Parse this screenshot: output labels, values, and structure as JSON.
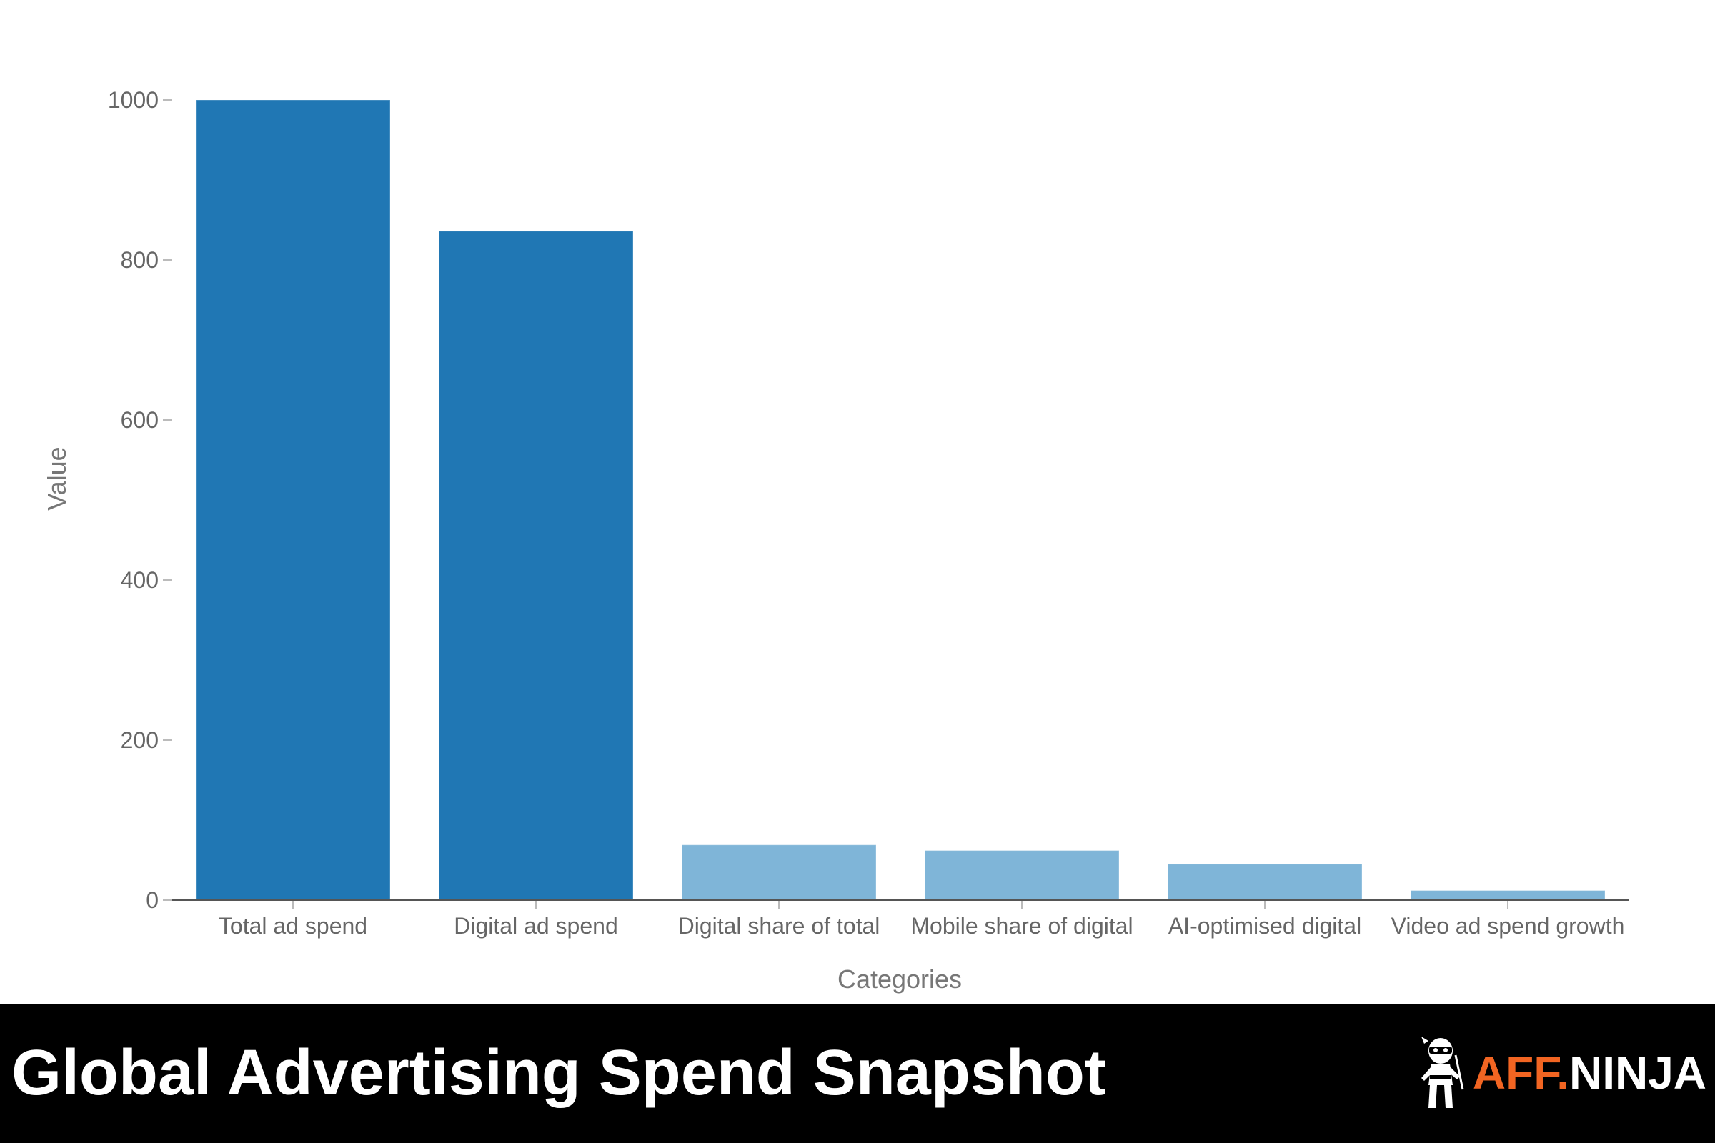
{
  "chart_data": {
    "type": "bar",
    "title": "Global Advertising Spend Snapshot",
    "xlabel": "Categories",
    "ylabel": "Value",
    "categories": [
      "Total ad spend",
      "Digital ad spend",
      "Digital share of total",
      "Mobile share of digital",
      "AI-optimised digital",
      "Video ad spend growth"
    ],
    "values": [
      1000,
      836,
      69,
      62,
      45,
      12
    ],
    "bar_colors": [
      "#2077b4",
      "#2077b4",
      "#7fb5d8",
      "#7fb5d8",
      "#7fb5d8",
      "#7fb5d8"
    ],
    "ylim": [
      0,
      1000
    ],
    "yticks": [
      0,
      200,
      400,
      600,
      800,
      1000
    ],
    "grid": false
  },
  "footer": {
    "title": "Global Advertising Spend Snapshot",
    "logo_accent": "AFF.",
    "logo_main": "NINJA",
    "accent_color": "#f26522"
  }
}
